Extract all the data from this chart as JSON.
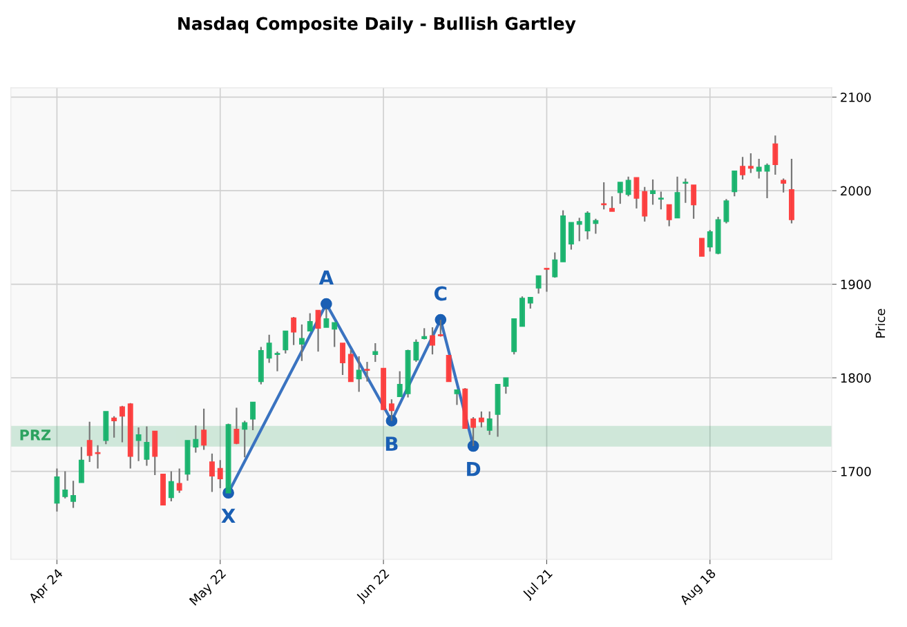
{
  "chart_data": {
    "type": "candlestick",
    "title": "Nasdaq Composite Daily - Bullish Gartley",
    "ylabel": "Price",
    "categories": [
      "Apr 24",
      null,
      null,
      null,
      null,
      null,
      null,
      null,
      null,
      null,
      null,
      null,
      null,
      null,
      null,
      null,
      null,
      null,
      null,
      null,
      "May 22",
      null,
      null,
      null,
      null,
      null,
      null,
      null,
      null,
      null,
      null,
      null,
      null,
      null,
      null,
      null,
      null,
      null,
      null,
      null,
      "Jun 22",
      null,
      null,
      null,
      null,
      null,
      null,
      null,
      null,
      null,
      null,
      null,
      null,
      null,
      null,
      null,
      null,
      null,
      null,
      null,
      "Jul 21",
      null,
      null,
      null,
      null,
      null,
      null,
      null,
      null,
      null,
      null,
      null,
      null,
      null,
      null,
      null,
      null,
      null,
      null,
      null,
      "Aug 18",
      null,
      null,
      null,
      null,
      null,
      null,
      null,
      null,
      null,
      null
    ],
    "ylim": [
      1606,
      2110
    ],
    "yticks": [
      1700,
      1800,
      1900,
      2000,
      2100
    ],
    "ohlc": [
      [
        1666,
        1703,
        1657,
        1694
      ],
      [
        1673,
        1700,
        1671,
        1680
      ],
      [
        1668,
        1690,
        1661,
        1674
      ],
      [
        1688,
        1726,
        1688,
        1712
      ],
      [
        1733,
        1753,
        1710,
        1717
      ],
      [
        1720,
        1728,
        1703,
        1719
      ],
      [
        1733,
        1764,
        1729,
        1764
      ],
      [
        1757,
        1759,
        1736,
        1754
      ],
      [
        1769,
        1770,
        1731,
        1759
      ],
      [
        1772,
        1773,
        1703,
        1716
      ],
      [
        1733,
        1747,
        1711,
        1739
      ],
      [
        1713,
        1748,
        1706,
        1731
      ],
      [
        1743,
        1743,
        1696,
        1716
      ],
      [
        1697,
        1697,
        1664,
        1664
      ],
      [
        1672,
        1700,
        1668,
        1689
      ],
      [
        1687,
        1703,
        1677,
        1680
      ],
      [
        1697,
        1733,
        1690,
        1733
      ],
      [
        1726,
        1749,
        1720,
        1734
      ],
      [
        1744,
        1767,
        1723,
        1728
      ],
      [
        1710,
        1719,
        1678,
        1695
      ],
      [
        1703,
        1712,
        1682,
        1692
      ],
      [
        1677,
        1751,
        1677,
        1750
      ],
      [
        1745,
        1768,
        1729,
        1730
      ],
      [
        1745,
        1754,
        1715,
        1752
      ],
      [
        1756,
        1774,
        1744,
        1774
      ],
      [
        1796,
        1833,
        1793,
        1829
      ],
      [
        1821,
        1846,
        1816,
        1837
      ],
      [
        1825,
        1828,
        1807,
        1826
      ],
      [
        1830,
        1850,
        1826,
        1850
      ],
      [
        1864,
        1865,
        1835,
        1849
      ],
      [
        1836,
        1857,
        1818,
        1842
      ],
      [
        1850,
        1869,
        1850,
        1860
      ],
      [
        1872,
        1872,
        1828,
        1853
      ],
      [
        1854,
        1874,
        1854,
        1863
      ],
      [
        1852,
        1859,
        1833,
        1859
      ],
      [
        1837,
        1837,
        1803,
        1816
      ],
      [
        1825,
        1830,
        1796,
        1796
      ],
      [
        1799,
        1823,
        1785,
        1808
      ],
      [
        1809,
        1817,
        1796,
        1808
      ],
      [
        1825,
        1837,
        1817,
        1828
      ],
      [
        1810,
        1810,
        1766,
        1766
      ],
      [
        1772,
        1777,
        1754,
        1765
      ],
      [
        1780,
        1807,
        1780,
        1793
      ],
      [
        1783,
        1830,
        1779,
        1829
      ],
      [
        1819,
        1841,
        1817,
        1838
      ],
      [
        1842,
        1853,
        1841,
        1844
      ],
      [
        1845,
        1854,
        1825,
        1835
      ],
      [
        1846,
        1862,
        1844,
        1845
      ],
      [
        1824,
        1824,
        1796,
        1796
      ],
      [
        1783,
        1787,
        1771,
        1787
      ],
      [
        1788,
        1789,
        1746,
        1746
      ],
      [
        1756,
        1758,
        1727,
        1747
      ],
      [
        1757,
        1764,
        1747,
        1753
      ],
      [
        1744,
        1764,
        1739,
        1756
      ],
      [
        1761,
        1793,
        1737,
        1793
      ],
      [
        1791,
        1800,
        1783,
        1800
      ],
      [
        1828,
        1863,
        1825,
        1863
      ],
      [
        1855,
        1887,
        1855,
        1885
      ],
      [
        1880,
        1886,
        1874,
        1886
      ],
      [
        1896,
        1909,
        1890,
        1909
      ],
      [
        1917,
        1917,
        1892,
        1916
      ],
      [
        1908,
        1934,
        1907,
        1926
      ],
      [
        1924,
        1979,
        1924,
        1973
      ],
      [
        1943,
        1966,
        1937,
        1966
      ],
      [
        1964,
        1971,
        1946,
        1967
      ],
      [
        1957,
        1978,
        1948,
        1976
      ],
      [
        1965,
        1970,
        1954,
        1968
      ],
      [
        1986,
        2009,
        1980,
        1985
      ],
      [
        1981,
        1994,
        1978,
        1978
      ],
      [
        1998,
        2009,
        1986,
        2009
      ],
      [
        1996,
        2015,
        1994,
        2011
      ],
      [
        2014,
        2014,
        1981,
        1992
      ],
      [
        1999,
        2004,
        1967,
        1973
      ],
      [
        1997,
        2012,
        1985,
        2000
      ],
      [
        1991,
        1999,
        1980,
        1992
      ],
      [
        1985,
        1985,
        1962,
        1969
      ],
      [
        1971,
        2015,
        1971,
        1998
      ],
      [
        2008,
        2013,
        1987,
        2009
      ],
      [
        2006,
        2006,
        1970,
        1985
      ],
      [
        1949,
        1949,
        1930,
        1930
      ],
      [
        1940,
        1958,
        1935,
        1956
      ],
      [
        1933,
        1972,
        1932,
        1969
      ],
      [
        1967,
        1991,
        1965,
        1989
      ],
      [
        1999,
        2021,
        1994,
        2021
      ],
      [
        2026,
        2036,
        2012,
        2017
      ],
      [
        2026,
        2040,
        2019,
        2024
      ],
      [
        2021,
        2034,
        2013,
        2025
      ],
      [
        2021,
        2029,
        1992,
        2027
      ],
      [
        2050,
        2059,
        2017,
        2028
      ],
      [
        2011,
        2013,
        1998,
        2008
      ],
      [
        2001,
        2034,
        1965,
        1969
      ]
    ],
    "colors": [
      "#16b46c",
      "#16b46c",
      "#16b46c",
      "#16b46c",
      "#ff3b3b",
      "#ff3b3b",
      "#16b46c",
      "#ff3b3b",
      "#ff3b3b",
      "#ff3b3b",
      "#16b46c",
      "#16b46c",
      "#ff3b3b",
      "#ff3b3b",
      "#16b46c",
      "#ff3b3b",
      "#16b46c",
      "#16b46c",
      "#ff3b3b",
      "#ff3b3b",
      "#ff3b3b",
      "#16b46c",
      "#ff3b3b",
      "#16b46c",
      "#16b46c",
      "#16b46c",
      "#16b46c",
      "#16b46c",
      "#16b46c",
      "#ff3b3b",
      "#16b46c",
      "#16b46c",
      "#ff3b3b",
      "#16b46c",
      "#16b46c",
      "#ff3b3b",
      "#ff3b3b",
      "#16b46c",
      "#ff3b3b",
      "#16b46c",
      "#ff3b3b",
      "#ff3b3b",
      "#16b46c",
      "#16b46c",
      "#16b46c",
      "#16b46c",
      "#ff3b3b",
      "#ff3b3b",
      "#ff3b3b",
      "#16b46c",
      "#ff3b3b",
      "#ff3b3b",
      "#ff3b3b",
      "#16b46c",
      "#16b46c",
      "#16b46c",
      "#16b46c",
      "#16b46c",
      "#16b46c",
      "#16b46c",
      "#ff3b3b",
      "#16b46c",
      "#16b46c",
      "#16b46c",
      "#16b46c",
      "#16b46c",
      "#16b46c",
      "#ff3b3b",
      "#ff3b3b",
      "#16b46c",
      "#16b46c",
      "#ff3b3b",
      "#ff3b3b",
      "#16b46c",
      "#16b46c",
      "#ff3b3b",
      "#16b46c",
      "#16b46c",
      "#ff3b3b",
      "#ff3b3b",
      "#16b46c",
      "#16b46c",
      "#16b46c",
      "#16b46c",
      "#ff3b3b",
      "#ff3b3b",
      "#16b46c",
      "#16b46c",
      "#ff3b3b",
      "#ff3b3b",
      "#ff3b3b"
    ],
    "series": [
      {
        "type": "line",
        "color": "#3a73c0",
        "marker": "circle",
        "values": [
          null,
          null,
          null,
          null,
          null,
          null,
          null,
          null,
          null,
          null,
          null,
          null,
          null,
          null,
          null,
          null,
          null,
          null,
          null,
          null,
          null,
          1677,
          null,
          null,
          null,
          null,
          null,
          null,
          null,
          null,
          null,
          null,
          null,
          1879,
          null,
          null,
          null,
          null,
          null,
          null,
          null,
          1754,
          null,
          null,
          null,
          null,
          null,
          1862,
          null,
          null,
          null,
          1727,
          null,
          null,
          null,
          null,
          null,
          null,
          null,
          null,
          null,
          null,
          null,
          null,
          null,
          null,
          null,
          null,
          null,
          null,
          null,
          null,
          null,
          null,
          null,
          null,
          null,
          null,
          null,
          null,
          null,
          null,
          null,
          null,
          null,
          null,
          null,
          null,
          null,
          null,
          null
        ],
        "value_labels": [
          null,
          null,
          null,
          null,
          null,
          null,
          null,
          null,
          null,
          null,
          null,
          null,
          null,
          null,
          null,
          null,
          null,
          null,
          null,
          null,
          null,
          "X",
          null,
          null,
          null,
          null,
          null,
          null,
          null,
          null,
          null,
          null,
          null,
          "A",
          null,
          null,
          null,
          null,
          null,
          null,
          null,
          "B",
          null,
          null,
          null,
          null,
          null,
          "C",
          null,
          null,
          null,
          "D",
          null,
          null,
          null,
          null,
          null,
          null,
          null,
          null,
          null,
          null,
          null,
          null,
          null,
          null,
          null,
          null,
          null,
          null,
          null,
          null,
          null,
          null,
          null,
          null,
          null,
          null,
          null,
          null,
          null,
          null,
          null,
          null,
          null,
          null,
          null,
          null,
          null,
          null,
          null
        ]
      }
    ],
    "bands": [
      {
        "axis": "y",
        "from": 1727,
        "to": 1748,
        "label": "PRZ",
        "color": "#2ca25f"
      }
    ],
    "grid": true
  }
}
